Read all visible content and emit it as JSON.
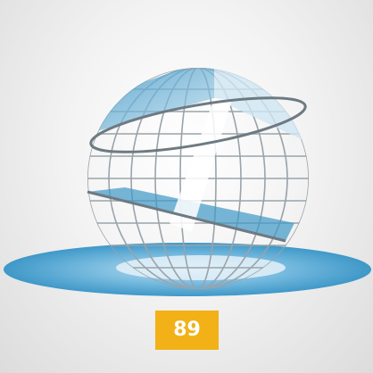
{
  "badge": "89"
}
